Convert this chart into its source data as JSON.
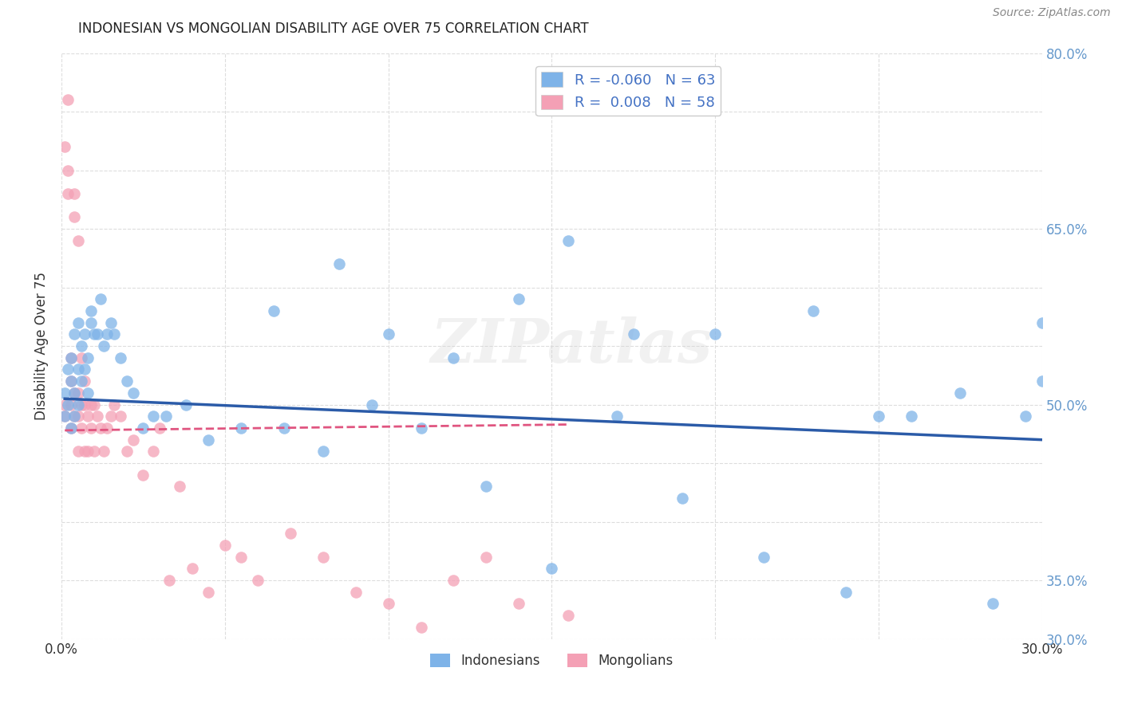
{
  "title": "INDONESIAN VS MONGOLIAN DISABILITY AGE OVER 75 CORRELATION CHART",
  "source": "Source: ZipAtlas.com",
  "ylabel": "Disability Age Over 75",
  "xlim": [
    0.0,
    0.3
  ],
  "ylim": [
    0.3,
    0.8
  ],
  "indonesians_x": [
    0.001,
    0.001,
    0.002,
    0.002,
    0.003,
    0.003,
    0.003,
    0.004,
    0.004,
    0.004,
    0.005,
    0.005,
    0.005,
    0.006,
    0.006,
    0.007,
    0.007,
    0.008,
    0.008,
    0.009,
    0.009,
    0.01,
    0.011,
    0.012,
    0.013,
    0.014,
    0.015,
    0.016,
    0.018,
    0.02,
    0.022,
    0.025,
    0.028,
    0.032,
    0.038,
    0.045,
    0.055,
    0.068,
    0.08,
    0.095,
    0.11,
    0.13,
    0.15,
    0.17,
    0.19,
    0.215,
    0.24,
    0.26,
    0.275,
    0.285,
    0.295,
    0.3,
    0.3,
    0.155,
    0.175,
    0.2,
    0.23,
    0.25,
    0.065,
    0.085,
    0.1,
    0.12,
    0.14
  ],
  "indonesians_y": [
    0.51,
    0.49,
    0.53,
    0.5,
    0.52,
    0.54,
    0.48,
    0.56,
    0.51,
    0.49,
    0.57,
    0.53,
    0.5,
    0.55,
    0.52,
    0.56,
    0.53,
    0.54,
    0.51,
    0.57,
    0.58,
    0.56,
    0.56,
    0.59,
    0.55,
    0.56,
    0.57,
    0.56,
    0.54,
    0.52,
    0.51,
    0.48,
    0.49,
    0.49,
    0.5,
    0.47,
    0.48,
    0.48,
    0.46,
    0.5,
    0.48,
    0.43,
    0.36,
    0.49,
    0.42,
    0.37,
    0.34,
    0.49,
    0.51,
    0.33,
    0.49,
    0.52,
    0.57,
    0.64,
    0.56,
    0.56,
    0.58,
    0.49,
    0.58,
    0.62,
    0.56,
    0.54,
    0.59
  ],
  "mongolians_x": [
    0.001,
    0.001,
    0.001,
    0.002,
    0.002,
    0.002,
    0.003,
    0.003,
    0.003,
    0.003,
    0.004,
    0.004,
    0.004,
    0.004,
    0.005,
    0.005,
    0.005,
    0.005,
    0.006,
    0.006,
    0.006,
    0.007,
    0.007,
    0.007,
    0.008,
    0.008,
    0.009,
    0.009,
    0.01,
    0.01,
    0.011,
    0.012,
    0.013,
    0.014,
    0.015,
    0.016,
    0.018,
    0.02,
    0.022,
    0.025,
    0.028,
    0.03,
    0.033,
    0.036,
    0.04,
    0.045,
    0.05,
    0.055,
    0.06,
    0.07,
    0.08,
    0.09,
    0.1,
    0.11,
    0.12,
    0.13,
    0.14,
    0.155
  ],
  "mongolians_y": [
    0.5,
    0.49,
    0.72,
    0.68,
    0.7,
    0.76,
    0.52,
    0.5,
    0.48,
    0.54,
    0.51,
    0.49,
    0.68,
    0.66,
    0.51,
    0.49,
    0.46,
    0.64,
    0.5,
    0.48,
    0.54,
    0.46,
    0.5,
    0.52,
    0.49,
    0.46,
    0.5,
    0.48,
    0.46,
    0.5,
    0.49,
    0.48,
    0.46,
    0.48,
    0.49,
    0.5,
    0.49,
    0.46,
    0.47,
    0.44,
    0.46,
    0.48,
    0.35,
    0.43,
    0.36,
    0.34,
    0.38,
    0.37,
    0.35,
    0.39,
    0.37,
    0.34,
    0.33,
    0.31,
    0.35,
    0.37,
    0.33,
    0.32
  ],
  "indonesian_color": "#7EB3E8",
  "mongolian_color": "#F4A0B5",
  "indonesian_line_color": "#2B5BA8",
  "mongolian_line_color": "#E05580",
  "legend_R_indonesian": "-0.060",
  "legend_R_mongolian": "0.008",
  "legend_N_indonesian": "63",
  "legend_N_mongolian": "58",
  "watermark": "ZIPatlas",
  "background_color": "#ffffff",
  "grid_color": "#dddddd",
  "right_yaxis_color": "#6699CC",
  "indonesian_line_x": [
    0.001,
    0.3
  ],
  "indonesian_line_y": [
    0.505,
    0.47
  ],
  "mongolian_line_x": [
    0.001,
    0.155
  ],
  "mongolian_line_y": [
    0.478,
    0.483
  ]
}
